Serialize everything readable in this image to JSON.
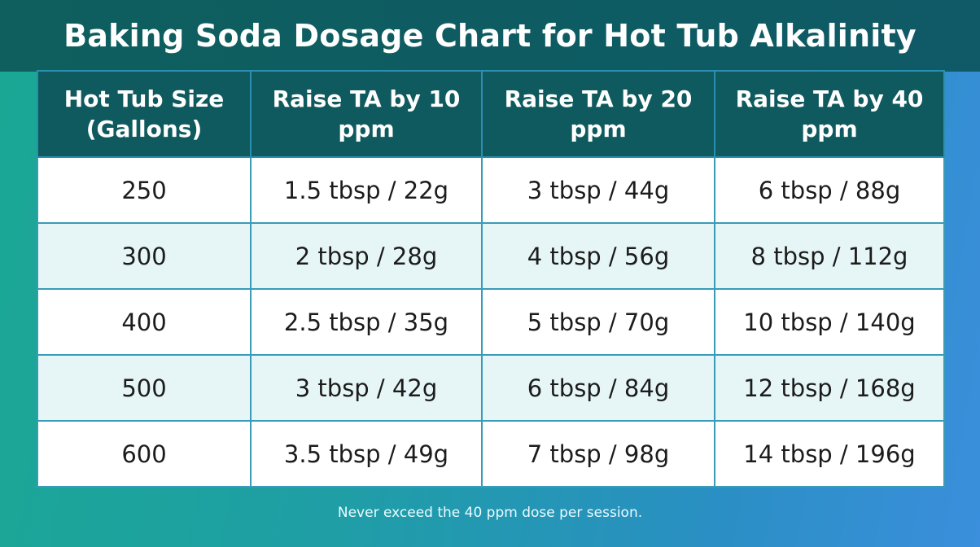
{
  "title": "Baking Soda Dosage Chart for Hot Tub Alkalinity",
  "colors": {
    "title_bar": "#0f5e60",
    "header_bg": "#0f5a5e",
    "row_white": "#ffffff",
    "row_tint": "#e6f6f6",
    "background_left": "#1aa894",
    "background_right": "#3b8fdc"
  },
  "chart_data": {
    "type": "table",
    "columns": [
      "Hot Tub Size (Gallons)",
      "Raise TA by 10 ppm",
      "Raise TA by 20 ppm",
      "Raise TA by 40 ppm"
    ],
    "rows": [
      [
        "250",
        "1.5 tbsp / 22g",
        "3 tbsp / 44g",
        "6 tbsp / 88g"
      ],
      [
        "300",
        "2 tbsp / 28g",
        "4 tbsp / 56g",
        "8 tbsp / 112g"
      ],
      [
        "400",
        "2.5 tbsp / 35g",
        "5 tbsp / 70g",
        "10 tbsp / 140g"
      ],
      [
        "500",
        "3 tbsp / 42g",
        "6 tbsp / 84g",
        "12 tbsp / 168g"
      ],
      [
        "600",
        "3.5 tbsp / 49g",
        "7 tbsp / 98g",
        "14 tbsp / 196g"
      ]
    ]
  },
  "footnote": "Never exceed the 40 ppm dose per session."
}
